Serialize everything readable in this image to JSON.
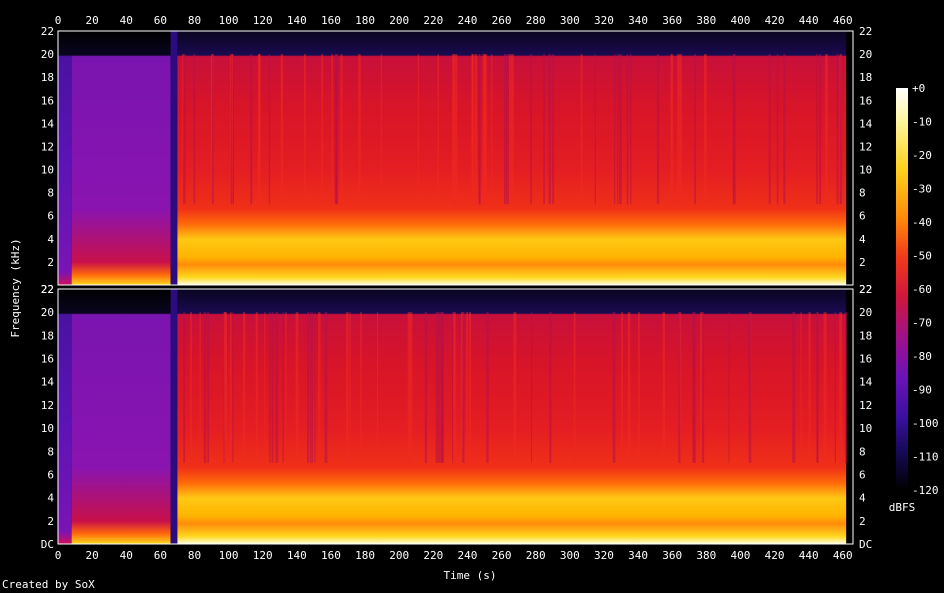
{
  "chart_data": {
    "type": "heatmap",
    "title": "",
    "xlabel": "Time (s)",
    "ylabel": "Frequency (kHz)",
    "x_ticks": [
      "0",
      "20",
      "40",
      "60",
      "80",
      "100",
      "120",
      "140",
      "160",
      "180",
      "200",
      "220",
      "240",
      "260",
      "280",
      "300",
      "320",
      "340",
      "360",
      "380",
      "400",
      "420",
      "440",
      "460"
    ],
    "y_ticks": [
      "DC",
      "2",
      "4",
      "6",
      "8",
      "10",
      "12",
      "14",
      "16",
      "18",
      "20",
      "22"
    ],
    "xlim": [
      0,
      466
    ],
    "ylim": [
      0,
      22
    ],
    "channels": 2,
    "colorbar": {
      "label": "dBFS",
      "ticks": [
        "+0",
        "-10",
        "-20",
        "-30",
        "-40",
        "-50",
        "-60",
        "-70",
        "-80",
        "-90",
        "-100",
        "-110",
        "-120"
      ],
      "range": [
        -120,
        0
      ]
    },
    "segments": [
      {
        "start": 0,
        "end": 8,
        "level": "quiet"
      },
      {
        "start": 8,
        "end": 66,
        "level": "low"
      },
      {
        "start": 66,
        "end": 70,
        "level": "silence-gap"
      },
      {
        "start": 70,
        "end": 462,
        "level": "loud"
      }
    ],
    "cutoff_khz": 20
  },
  "footer": {
    "credit": "Created by SoX"
  },
  "colors": {
    "background": "#000000",
    "text": "#ffffff"
  }
}
